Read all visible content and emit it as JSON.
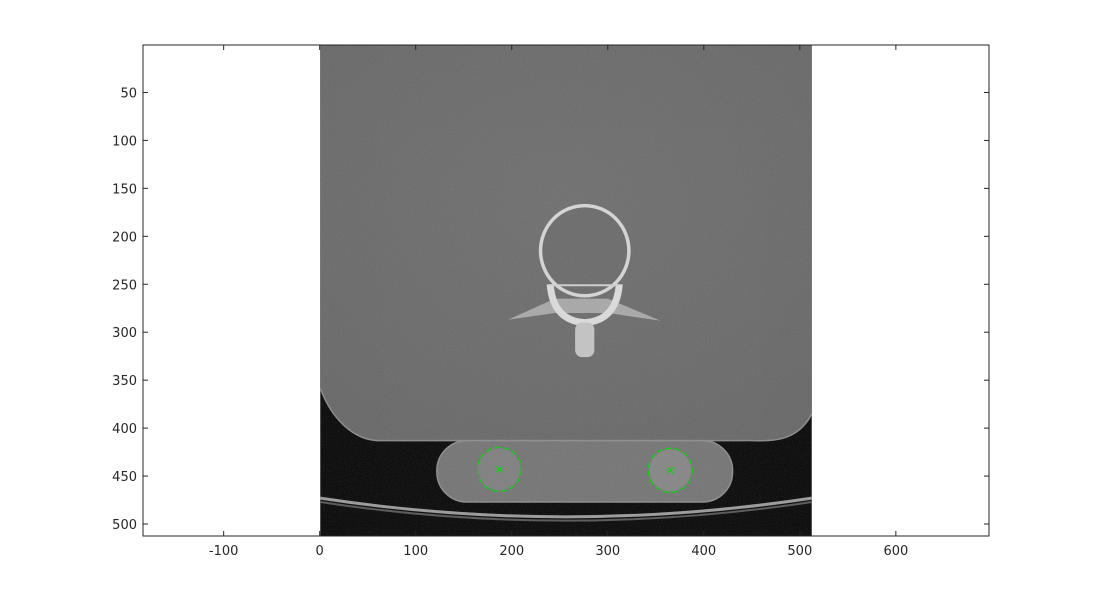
{
  "chart_data": {
    "type": "image",
    "xlim": [
      -184,
      697
    ],
    "ylim": [
      0.5,
      512.5
    ],
    "y_reversed": true,
    "x_ticks": [
      -100,
      0,
      100,
      200,
      300,
      400,
      500,
      600
    ],
    "y_ticks": [
      50,
      100,
      150,
      200,
      250,
      300,
      350,
      400,
      450,
      500
    ],
    "image_extent": {
      "x": [
        0.5,
        512.5
      ],
      "y": [
        0.5,
        512.5
      ]
    },
    "markers": [
      {
        "name": "roi-left",
        "x": 187,
        "y": 443,
        "radius": 23
      },
      {
        "name": "roi-right",
        "x": 365,
        "y": 444,
        "radius": 23
      }
    ],
    "colors": {
      "axes": "#262626",
      "marker": "#00dd00",
      "background": "#ffffff"
    },
    "grid": false
  }
}
